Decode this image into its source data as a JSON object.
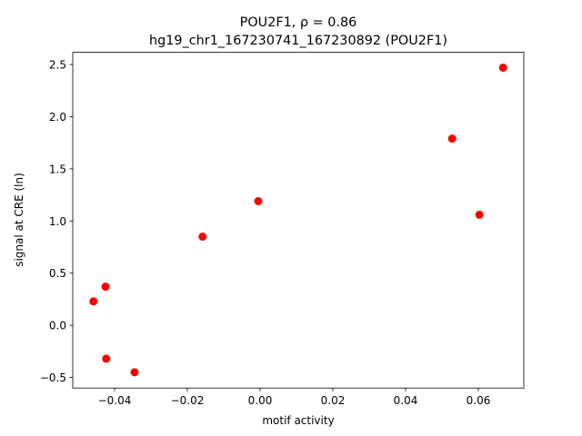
{
  "chart_data": {
    "type": "scatter",
    "title": "POU2F1, ρ = 0.86",
    "subtitle": "hg19_chr1_167230741_167230892 (POU2F1)",
    "x_label": "motif activity",
    "y_label": "signal at CRE (ln)",
    "color": "#ff0000",
    "x": [
      0.0668,
      0.0528,
      0.0603,
      -0.0005,
      -0.0158,
      -0.0425,
      -0.0458,
      -0.0423,
      -0.0345
    ],
    "values": [
      2.47,
      1.79,
      1.06,
      1.19,
      0.85,
      0.37,
      0.23,
      -0.32,
      -0.45
    ],
    "xlim": [
      -0.0515,
      0.0725
    ],
    "ylim": [
      -0.601,
      2.617
    ],
    "xticks": [
      {
        "value": -0.04,
        "label": "−0.04"
      },
      {
        "value": -0.02,
        "label": "−0.02"
      },
      {
        "value": 0,
        "label": "0.00"
      },
      0.02,
      0.04,
      0.06
    ],
    "yticks": [
      {
        "value": -0.5,
        "label": "−0.5"
      },
      {
        "value": 0,
        "label": "0.0"
      },
      0.5,
      {
        "value": 1,
        "label": "1.0"
      },
      1.5,
      {
        "value": 2,
        "label": "2.0"
      },
      2.5
    ],
    "grid": false
  }
}
